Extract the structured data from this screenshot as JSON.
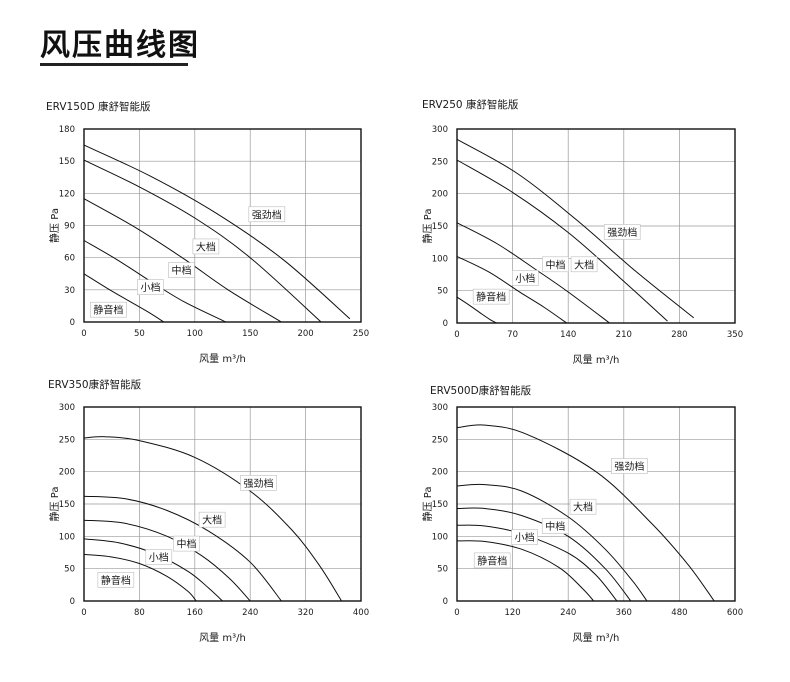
{
  "page": {
    "title": "风压曲线图"
  },
  "chart_data": [
    {
      "type": "line",
      "title": "ERV150D  康舒智能版",
      "xlabel": "风量  m³/h",
      "ylabel": "静压  Pa",
      "xlim": [
        0,
        250
      ],
      "ylim": [
        0,
        180
      ],
      "xticks": [
        0,
        50,
        100,
        150,
        200,
        250
      ],
      "yticks": [
        0,
        30,
        60,
        90,
        120,
        150,
        180
      ],
      "grid": true,
      "series": [
        {
          "name": "强劲档",
          "label_at": [
            165,
            100
          ],
          "points": [
            [
              0,
              165
            ],
            [
              60,
              136
            ],
            [
              120,
              101
            ],
            [
              180,
              58
            ],
            [
              240,
              3
            ]
          ]
        },
        {
          "name": "大档",
          "label_at": [
            110,
            70
          ],
          "points": [
            [
              0,
              151
            ],
            [
              50,
              126
            ],
            [
              100,
              97
            ],
            [
              150,
              60
            ],
            [
              214,
              0
            ]
          ]
        },
        {
          "name": "中档",
          "label_at": [
            88,
            48
          ],
          "points": [
            [
              0,
              115
            ],
            [
              45,
              89
            ],
            [
              90,
              59
            ],
            [
              130,
              30
            ],
            [
              178,
              0
            ]
          ]
        },
        {
          "name": "小档",
          "label_at": [
            60,
            32
          ],
          "points": [
            [
              0,
              76
            ],
            [
              30,
              58
            ],
            [
              60,
              38
            ],
            [
              90,
              19
            ],
            [
              128,
              0
            ]
          ]
        },
        {
          "name": "静音档",
          "label_at": [
            22,
            11
          ],
          "points": [
            [
              0,
              45
            ],
            [
              20,
              32
            ],
            [
              40,
              20
            ],
            [
              60,
              8
            ],
            [
              72,
              0
            ]
          ]
        }
      ]
    },
    {
      "type": "line",
      "title": "ERV250  康舒智能版",
      "xlabel": "风量  m³/h",
      "ylabel": "静压  Pa",
      "xlim": [
        0,
        350
      ],
      "ylim": [
        0,
        300
      ],
      "xticks": [
        0,
        70,
        140,
        210,
        280,
        350
      ],
      "yticks": [
        0,
        50,
        100,
        150,
        200,
        250,
        300
      ],
      "grid": true,
      "series": [
        {
          "name": "强劲档",
          "label_at": [
            208,
            140
          ],
          "points": [
            [
              0,
              284
            ],
            [
              75,
              232
            ],
            [
              150,
              160
            ],
            [
              225,
              80
            ],
            [
              298,
              8
            ]
          ]
        },
        {
          "name": "大档",
          "label_at": [
            160,
            90
          ],
          "points": [
            [
              0,
              252
            ],
            [
              70,
              202
            ],
            [
              140,
              140
            ],
            [
              205,
              70
            ],
            [
              265,
              3
            ]
          ]
        },
        {
          "name": "中档",
          "label_at": [
            124,
            90
          ],
          "points": [
            [
              0,
              155
            ],
            [
              50,
              123
            ],
            [
              100,
              82
            ],
            [
              140,
              48
            ],
            [
              192,
              0
            ]
          ]
        },
        {
          "name": "小档",
          "label_at": [
            86,
            69
          ],
          "points": [
            [
              0,
              103
            ],
            [
              40,
              79
            ],
            [
              80,
              47
            ],
            [
              110,
              24
            ],
            [
              138,
              0
            ]
          ]
        },
        {
          "name": "静音档",
          "label_at": [
            43,
            40
          ],
          "points": [
            [
              0,
              40
            ],
            [
              15,
              28
            ],
            [
              30,
              15
            ],
            [
              42,
              5
            ],
            [
              50,
              0
            ]
          ]
        }
      ]
    },
    {
      "type": "line",
      "title": "ERV350康舒智能版",
      "xlabel": "风量  m³/h",
      "ylabel": "静压  Pa",
      "xlim": [
        0,
        400
      ],
      "ylim": [
        0,
        300
      ],
      "xticks": [
        0,
        80,
        160,
        240,
        320,
        400
      ],
      "yticks": [
        0,
        50,
        100,
        150,
        200,
        250,
        300
      ],
      "grid": true,
      "series": [
        {
          "name": "强劲档",
          "label_at": [
            252,
            182
          ],
          "points": [
            [
              0,
              252
            ],
            [
              30,
              254
            ],
            [
              80,
              248
            ],
            [
              160,
              222
            ],
            [
              240,
              170
            ],
            [
              300,
              110
            ],
            [
              340,
              55
            ],
            [
              372,
              0
            ]
          ]
        },
        {
          "name": "大档",
          "label_at": [
            185,
            125
          ],
          "points": [
            [
              0,
              162
            ],
            [
              60,
              158
            ],
            [
              120,
              140
            ],
            [
              180,
              108
            ],
            [
              240,
              60
            ],
            [
              285,
              0
            ]
          ]
        },
        {
          "name": "中档",
          "label_at": [
            148,
            88
          ],
          "points": [
            [
              0,
              125
            ],
            [
              60,
              120
            ],
            [
              120,
              100
            ],
            [
              170,
              70
            ],
            [
              210,
              35
            ],
            [
              240,
              0
            ]
          ]
        },
        {
          "name": "小档",
          "label_at": [
            108,
            67
          ],
          "points": [
            [
              0,
              96
            ],
            [
              50,
              90
            ],
            [
              100,
              74
            ],
            [
              150,
              46
            ],
            [
              180,
              20
            ],
            [
              200,
              0
            ]
          ]
        },
        {
          "name": "静音档",
          "label_at": [
            46,
            32
          ],
          "points": [
            [
              0,
              72
            ],
            [
              40,
              68
            ],
            [
              80,
              58
            ],
            [
              120,
              38
            ],
            [
              150,
              15
            ],
            [
              162,
              0
            ]
          ]
        }
      ]
    },
    {
      "type": "line",
      "title": "ERV500D康舒智能版",
      "xlabel": "风量  m³/h",
      "ylabel": "静压  Pa",
      "xlim": [
        0,
        600
      ],
      "ylim": [
        0,
        300
      ],
      "xticks": [
        0,
        120,
        240,
        360,
        480,
        600
      ],
      "yticks": [
        0,
        50,
        100,
        150,
        200,
        250,
        300
      ],
      "grid": true,
      "series": [
        {
          "name": "强劲档",
          "label_at": [
            372,
            208
          ],
          "points": [
            [
              0,
              268
            ],
            [
              60,
              272
            ],
            [
              150,
              258
            ],
            [
              300,
              200
            ],
            [
              420,
              120
            ],
            [
              500,
              55
            ],
            [
              555,
              0
            ]
          ]
        },
        {
          "name": "大档",
          "label_at": [
            272,
            145
          ],
          "points": [
            [
              0,
              178
            ],
            [
              60,
              180
            ],
            [
              140,
              170
            ],
            [
              240,
              130
            ],
            [
              320,
              80
            ],
            [
              380,
              30
            ],
            [
              410,
              0
            ]
          ]
        },
        {
          "name": "中档",
          "label_at": [
            212,
            115
          ],
          "points": [
            [
              0,
              143
            ],
            [
              60,
              143
            ],
            [
              140,
              132
            ],
            [
              240,
              100
            ],
            [
              320,
              50
            ],
            [
              375,
              0
            ]
          ]
        },
        {
          "name": "小档",
          "label_at": [
            146,
            98
          ],
          "points": [
            [
              0,
              117
            ],
            [
              60,
              116
            ],
            [
              140,
              104
            ],
            [
              240,
              74
            ],
            [
              300,
              40
            ],
            [
              345,
              0
            ]
          ]
        },
        {
          "name": "静音档",
          "label_at": [
            76,
            62
          ],
          "points": [
            [
              0,
              93
            ],
            [
              60,
              92
            ],
            [
              140,
              80
            ],
            [
              220,
              52
            ],
            [
              270,
              20
            ],
            [
              295,
              0
            ]
          ]
        }
      ]
    }
  ]
}
